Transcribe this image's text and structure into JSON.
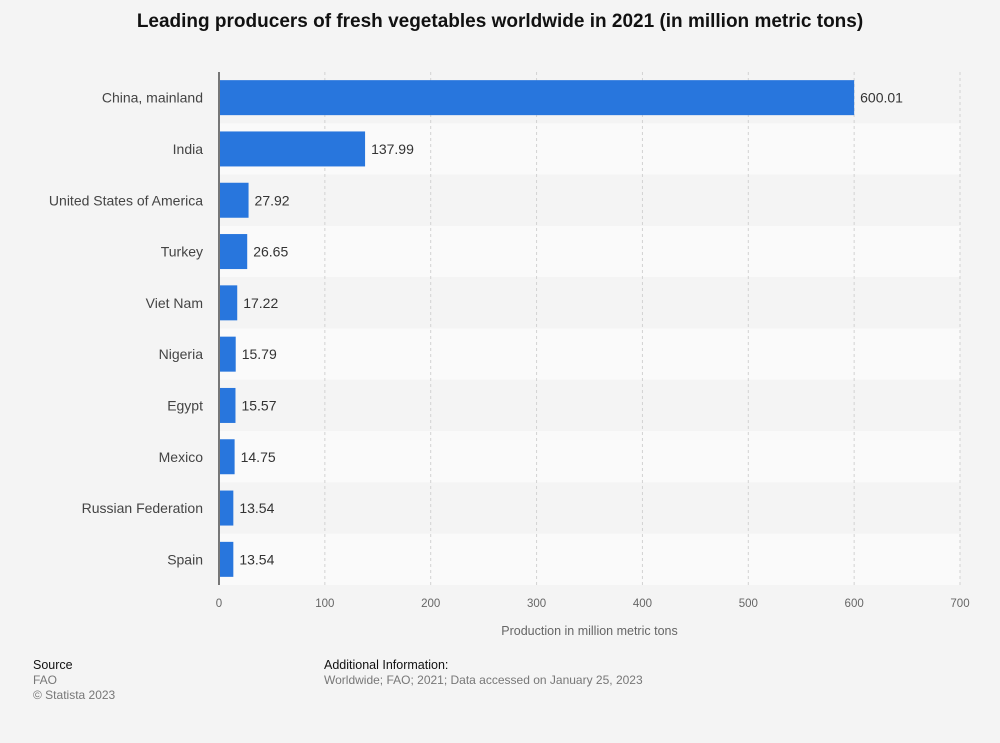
{
  "chart_data": {
    "type": "bar",
    "orientation": "horizontal",
    "title": "Leading producers of fresh vegetables worldwide in 2021 (in million metric tons)",
    "xlabel": "Production in million metric tons",
    "ylabel": "",
    "categories": [
      "China, mainland",
      "India",
      "United States of America",
      "Turkey",
      "Viet Nam",
      "Nigeria",
      "Egypt",
      "Mexico",
      "Russian Federation",
      "Spain"
    ],
    "values": [
      600.01,
      137.99,
      27.92,
      26.65,
      17.22,
      15.79,
      15.57,
      14.75,
      13.54,
      13.54
    ],
    "value_labels": [
      "600.01",
      "137.99",
      "27.92",
      "26.65",
      "17.22",
      "15.79",
      "15.57",
      "14.75",
      "13.54",
      "13.54"
    ],
    "xlim": [
      0,
      700
    ],
    "xticks": [
      0,
      100,
      200,
      300,
      400,
      500,
      600,
      700
    ],
    "grid": true,
    "legend": "none",
    "bar_color": "#2876dd"
  },
  "footer": {
    "source_heading": "Source",
    "source_text": "FAO",
    "copyright": "© Statista 2023",
    "additional_heading": "Additional Information:",
    "additional_text": "Worldwide; FAO; 2021; Data accessed on January 25, 2023"
  }
}
